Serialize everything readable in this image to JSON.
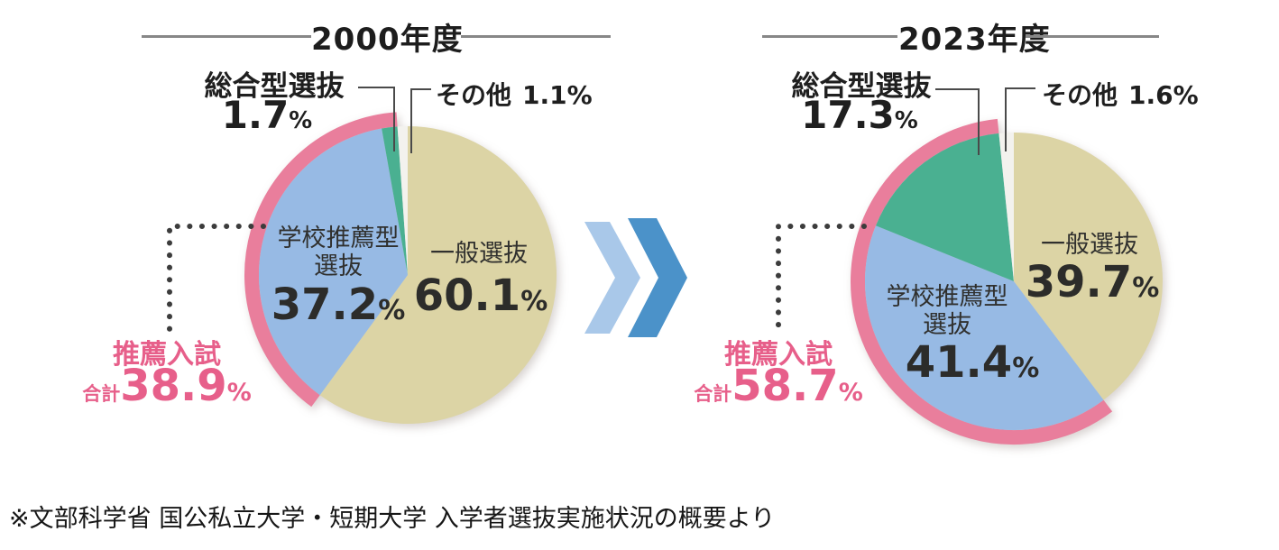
{
  "percent_sign": "%",
  "source_note": "※文部科学省 国公私立大学・短期大学 入学者選抜実施状況の概要より",
  "colors": {
    "highlight_arc": "#e97e9c",
    "highlight_text": "#e75f8a",
    "arrow_light": "#a9c8e9",
    "arrow_dark": "#4b92c9"
  },
  "chart_data": [
    {
      "type": "pie",
      "title": "2000年度",
      "start_angle_deg": 0,
      "direction": "clockwise",
      "slices": [
        {
          "label": "一般選抜",
          "value": 60.1,
          "color": "#dcd4a5",
          "label_lines": [
            "一般選抜"
          ]
        },
        {
          "label": "学校推薦型選抜",
          "value": 37.2,
          "color": "#97bae4",
          "label_lines": [
            "学校推薦型",
            "選抜"
          ]
        },
        {
          "label": "総合型選抜",
          "value": 1.7,
          "color": "#4ab091",
          "label_lines": [
            "総合型選抜"
          ]
        },
        {
          "label": "その他",
          "value": 1.1,
          "color": "#f3f2ee",
          "label_lines": [
            "その他"
          ]
        }
      ],
      "highlight": {
        "label": "推薦入試",
        "prefix": "合計",
        "value": 38.9,
        "covers": [
          "学校推薦型選抜",
          "総合型選抜"
        ]
      }
    },
    {
      "type": "pie",
      "title": "2023年度",
      "start_angle_deg": 0,
      "direction": "clockwise",
      "slices": [
        {
          "label": "一般選抜",
          "value": 39.7,
          "color": "#dcd4a5",
          "label_lines": [
            "一般選抜"
          ]
        },
        {
          "label": "学校推薦型選抜",
          "value": 41.4,
          "color": "#97bae4",
          "label_lines": [
            "学校推薦型",
            "選抜"
          ]
        },
        {
          "label": "総合型選抜",
          "value": 17.3,
          "color": "#4ab091",
          "label_lines": [
            "総合型選抜"
          ]
        },
        {
          "label": "その他",
          "value": 1.6,
          "color": "#f3f2ee",
          "label_lines": [
            "その他"
          ]
        }
      ],
      "highlight": {
        "label": "推薦入試",
        "prefix": "合計",
        "value": 58.7,
        "covers": [
          "学校推薦型選抜",
          "総合型選抜"
        ]
      }
    }
  ]
}
